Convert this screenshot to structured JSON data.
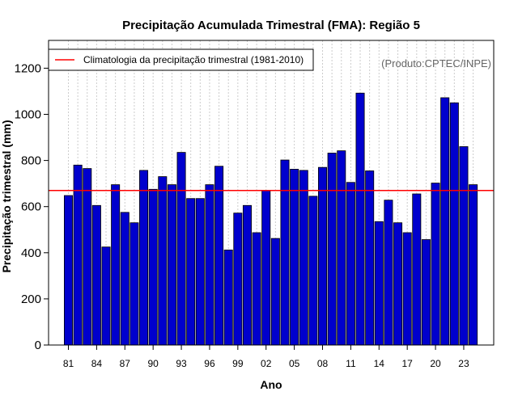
{
  "chart_data": {
    "type": "bar",
    "title": "Precipitação Acumulada Trimestral (FMA): Região 5",
    "xlabel": "Ano",
    "ylabel": "Precipitação trimestral (mm)",
    "ylim": [
      0,
      1300
    ],
    "yticks": [
      0,
      200,
      400,
      600,
      800,
      1000,
      1200
    ],
    "credit": "(Produto:CPTEC/INPE)",
    "years": [
      1981,
      1982,
      1983,
      1984,
      1985,
      1986,
      1987,
      1988,
      1989,
      1990,
      1991,
      1992,
      1993,
      1994,
      1995,
      1996,
      1997,
      1998,
      1999,
      2000,
      2001,
      2002,
      2003,
      2004,
      2005,
      2006,
      2007,
      2008,
      2009,
      2010,
      2011,
      2012,
      2013,
      2014,
      2015,
      2016,
      2017,
      2018,
      2019,
      2020,
      2021,
      2022,
      2023,
      2024
    ],
    "values": [
      648,
      780,
      765,
      605,
      425,
      695,
      575,
      530,
      757,
      675,
      730,
      695,
      835,
      635,
      635,
      695,
      775,
      412,
      572,
      605,
      487,
      670,
      462,
      802,
      762,
      757,
      645,
      770,
      832,
      842,
      705,
      1092,
      755,
      535,
      628,
      530,
      487,
      655,
      457,
      702,
      1072,
      1050,
      860,
      695
    ],
    "xtick_labels": [
      "81",
      "84",
      "87",
      "90",
      "93",
      "96",
      "99",
      "02",
      "05",
      "08",
      "11",
      "14",
      "17",
      "20",
      "23"
    ],
    "xtick_years": [
      1981,
      1984,
      1987,
      1990,
      1993,
      1996,
      1999,
      2002,
      2005,
      2008,
      2011,
      2014,
      2017,
      2020,
      2023
    ],
    "climatology": {
      "value": 670,
      "label": "Climatologia da precipitação trimestral (1981-2010)",
      "color": "#ff0000"
    },
    "bar_color": "#0000cd",
    "grid_color": "#cccccc"
  }
}
